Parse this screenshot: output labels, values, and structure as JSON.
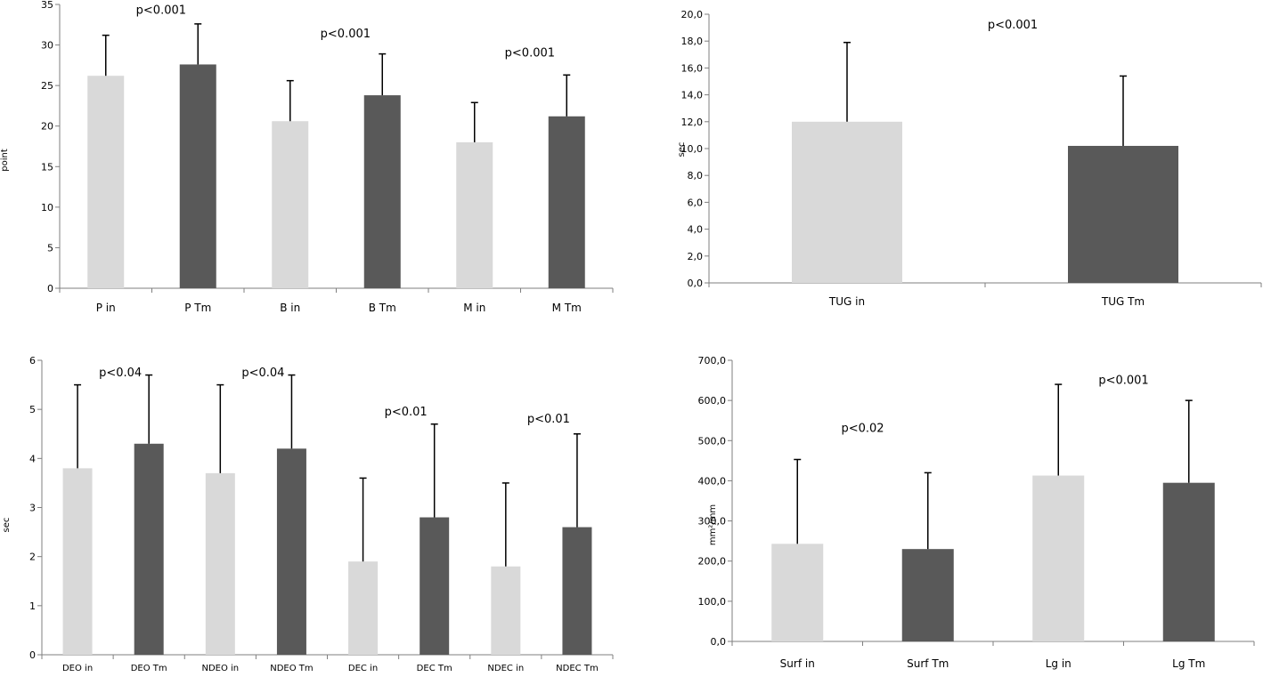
{
  "colors": {
    "light": "#d9d9d9",
    "dark": "#595959",
    "axis": "#7f7f7f"
  },
  "chart_data": [
    {
      "type": "bar",
      "ylabel": "point",
      "ylim": [
        0,
        35
      ],
      "yticks": [
        "0",
        "5",
        "10",
        "15",
        "20",
        "25",
        "30",
        "35"
      ],
      "categories": [
        "P in",
        "P Tm",
        "B in",
        "B Tm",
        "M in",
        "M Tm"
      ],
      "values": [
        26.2,
        27.6,
        20.6,
        23.8,
        18.0,
        21.2
      ],
      "errors": [
        5.0,
        5.0,
        5.0,
        5.1,
        4.9,
        5.1
      ],
      "shades": [
        "light",
        "dark",
        "light",
        "dark",
        "light",
        "dark"
      ],
      "annotations": [
        {
          "text": "p<0.001",
          "x": 0.6,
          "y": 34.3
        },
        {
          "text": "p<0.001",
          "x": 2.6,
          "y": 31.4
        },
        {
          "text": "p<0.001",
          "x": 4.6,
          "y": 29.0
        }
      ]
    },
    {
      "type": "bar",
      "ylabel": "sec",
      "ylim": [
        0,
        20
      ],
      "yticks": [
        "0,0",
        "2,0",
        "4,0",
        "6,0",
        "8,0",
        "10,0",
        "12,0",
        "14,0",
        "16,0",
        "18,0",
        "20,0"
      ],
      "categories": [
        "TUG in",
        "TUG Tm"
      ],
      "values": [
        12.0,
        10.2
      ],
      "errors": [
        5.9,
        5.2
      ],
      "shades": [
        "light",
        "dark"
      ],
      "annotations": [
        {
          "text": "p<0.001",
          "x": 0.6,
          "y": 19.2
        }
      ]
    },
    {
      "type": "bar",
      "ylabel": "sec",
      "ylim": [
        0,
        6
      ],
      "yticks": [
        "0",
        "1",
        "2",
        "3",
        "4",
        "5",
        "6"
      ],
      "categories": [
        "DEO in",
        "DEO Tm",
        "NDEO in",
        "NDEO Tm",
        "DEC in",
        "DEC Tm",
        "NDEC in",
        "NDEC Tm"
      ],
      "values": [
        3.8,
        4.3,
        3.7,
        4.2,
        1.9,
        2.8,
        1.8,
        2.6
      ],
      "errors": [
        1.7,
        1.4,
        1.8,
        1.5,
        1.7,
        1.9,
        1.7,
        1.9
      ],
      "shades": [
        "light",
        "dark",
        "light",
        "dark",
        "light",
        "dark",
        "light",
        "dark"
      ],
      "annotations": [
        {
          "text": "p<0.04",
          "x": 0.6,
          "y": 5.75
        },
        {
          "text": "p<0.04",
          "x": 2.6,
          "y": 5.75
        },
        {
          "text": "p<0.01",
          "x": 4.6,
          "y": 4.95
        },
        {
          "text": "p<0.01",
          "x": 6.6,
          "y": 4.8
        }
      ]
    },
    {
      "type": "bar",
      "ylabel": "mm²/mm",
      "ylim": [
        0,
        700
      ],
      "yticks": [
        "0,0",
        "100,0",
        "200,0",
        "300,0",
        "400,0",
        "500,0",
        "600,0",
        "700,0"
      ],
      "categories": [
        "Surf in",
        "Surf Tm",
        "Lg in",
        "Lg Tm"
      ],
      "values": [
        243,
        230,
        413,
        395
      ],
      "errors": [
        210,
        190,
        227,
        205
      ],
      "shades": [
        "light",
        "dark",
        "light",
        "dark"
      ],
      "annotations": [
        {
          "text": "p<0.02",
          "x": 0.5,
          "y": 530
        },
        {
          "text": "p<0.001",
          "x": 2.5,
          "y": 650
        }
      ]
    }
  ]
}
